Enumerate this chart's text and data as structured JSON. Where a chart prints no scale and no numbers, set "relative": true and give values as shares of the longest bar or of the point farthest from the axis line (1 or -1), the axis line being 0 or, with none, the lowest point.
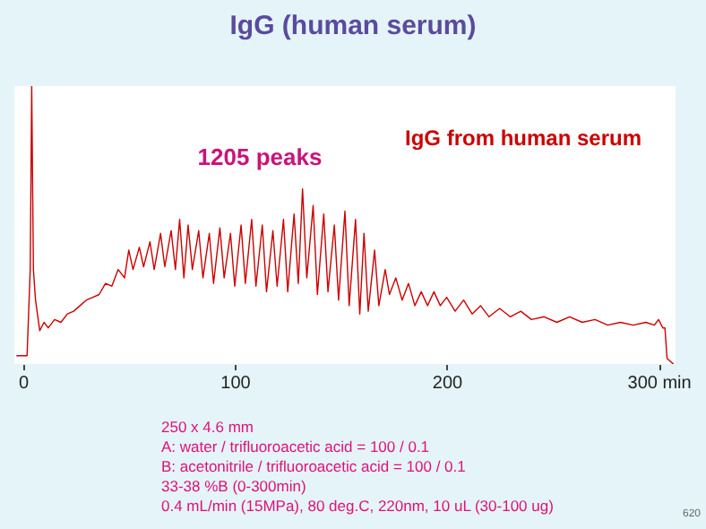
{
  "chart_data": {
    "type": "line",
    "title": "IgG (human serum)",
    "relative": true,
    "annotations": [
      "1205 peaks",
      "IgG from human serum",
      "250 x 4.6 mm",
      "A: water / trifluoroacetic acid = 100 / 0.1",
      "B: acetonitrile / trifluoroacetic acid = 100 / 0.1",
      "33-38 %B (0-300min)",
      "0.4 mL/min (15MPa), 80 deg.C, 220nm, 10 uL (30-100 ug)",
      "620"
    ],
    "xlim": [
      -4,
      308
    ],
    "xticks": [
      0,
      100,
      200,
      {
        "value": 300,
        "label": "300 min"
      }
    ],
    "x": [
      -3,
      2,
      3.5,
      4.2,
      5,
      6,
      8,
      10,
      12,
      15,
      18,
      21,
      24,
      27,
      30,
      33,
      36,
      39,
      42,
      45,
      48,
      50,
      52,
      55,
      57,
      60,
      62,
      65,
      67,
      70,
      72,
      74,
      76,
      78,
      80,
      83,
      85,
      88,
      90,
      93,
      95,
      98,
      100,
      103,
      105,
      108,
      110,
      113,
      115,
      118,
      120,
      123,
      125,
      128,
      130,
      132,
      134,
      137,
      139,
      142,
      144,
      147,
      149,
      152,
      154,
      157,
      159,
      161,
      163,
      166,
      168,
      171,
      173,
      176,
      179,
      182,
      185,
      188,
      191,
      194,
      197,
      200,
      204,
      208,
      212,
      216,
      220,
      225,
      230,
      235,
      240,
      246,
      252,
      258,
      264,
      270,
      276,
      282,
      288,
      294,
      298,
      300,
      302,
      303,
      304,
      307
    ],
    "series": [
      {
        "color": "#cc0000",
        "values": [
          0.03,
          0.03,
          0.34,
          1.0,
          0.34,
          0.23,
          0.12,
          0.15,
          0.13,
          0.16,
          0.15,
          0.18,
          0.19,
          0.21,
          0.23,
          0.24,
          0.25,
          0.29,
          0.28,
          0.34,
          0.31,
          0.41,
          0.34,
          0.42,
          0.35,
          0.44,
          0.34,
          0.47,
          0.35,
          0.48,
          0.34,
          0.52,
          0.31,
          0.5,
          0.34,
          0.48,
          0.31,
          0.47,
          0.29,
          0.49,
          0.31,
          0.47,
          0.28,
          0.5,
          0.29,
          0.52,
          0.28,
          0.5,
          0.26,
          0.48,
          0.28,
          0.52,
          0.26,
          0.54,
          0.29,
          0.63,
          0.31,
          0.57,
          0.25,
          0.54,
          0.26,
          0.5,
          0.23,
          0.55,
          0.21,
          0.52,
          0.18,
          0.47,
          0.19,
          0.41,
          0.21,
          0.34,
          0.25,
          0.31,
          0.23,
          0.29,
          0.21,
          0.26,
          0.21,
          0.26,
          0.21,
          0.24,
          0.19,
          0.23,
          0.18,
          0.21,
          0.17,
          0.2,
          0.17,
          0.19,
          0.16,
          0.17,
          0.15,
          0.17,
          0.15,
          0.16,
          0.14,
          0.15,
          0.14,
          0.15,
          0.14,
          0.16,
          0.13,
          0.13,
          0.02,
          0.0
        ]
      }
    ]
  }
}
